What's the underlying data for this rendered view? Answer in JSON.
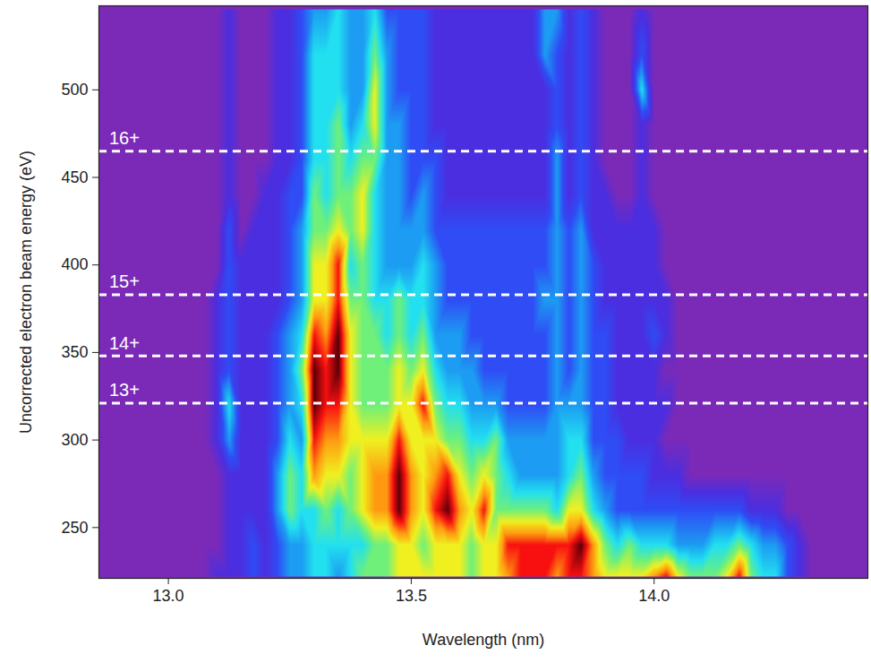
{
  "chart_data": {
    "type": "heatmap",
    "x_label": "Wavelength (nm)",
    "y_label": "Uncorrected electron beam energy (eV)",
    "xlim": [
      12.857,
      14.44
    ],
    "ylim": [
      221,
      548
    ],
    "xticks": [
      {
        "value": 13,
        "label": "13.0"
      },
      {
        "value": 13.5,
        "label": "13.5"
      },
      {
        "value": 14,
        "label": "14.0"
      }
    ],
    "yticks": [
      250,
      300,
      350,
      400,
      450,
      500
    ],
    "annotations": [
      {
        "label": "16+",
        "x": 12.878,
        "y": 465
      },
      {
        "label": "15+",
        "x": 12.878,
        "y": 383
      },
      {
        "label": "14+",
        "x": 12.878,
        "y": 348
      },
      {
        "label": "13+",
        "x": 12.878,
        "y": 321
      }
    ],
    "x": [
      12.875,
      12.9,
      12.925,
      12.95,
      12.975,
      13.0,
      13.025,
      13.05,
      13.075,
      13.1,
      13.125,
      13.15,
      13.175,
      13.2,
      13.225,
      13.25,
      13.275,
      13.3,
      13.325,
      13.35,
      13.375,
      13.4,
      13.425,
      13.45,
      13.475,
      13.5,
      13.525,
      13.55,
      13.575,
      13.6,
      13.625,
      13.65,
      13.675,
      13.7,
      13.725,
      13.75,
      13.775,
      13.8,
      13.825,
      13.85,
      13.875,
      13.9,
      13.925,
      13.95,
      13.975,
      14.0,
      14.025,
      14.05,
      14.075,
      14.1,
      14.125,
      14.15,
      14.175,
      14.2,
      14.225,
      14.25,
      14.275,
      14.3,
      14.325,
      14.35,
      14.375,
      14.4,
      14.425
    ],
    "y": [
      222,
      240,
      260,
      280,
      300,
      320,
      340,
      360,
      380,
      400,
      420,
      440,
      460,
      480,
      500,
      520,
      546
    ],
    "values": [
      [
        0,
        0,
        0,
        0,
        0,
        0,
        0,
        0,
        0,
        1,
        1,
        1,
        2,
        1,
        2,
        3,
        3,
        4,
        4,
        3,
        4,
        5,
        5,
        5,
        6,
        6,
        6,
        6,
        6,
        6,
        5,
        6,
        6,
        7,
        8,
        8,
        8,
        7,
        8,
        8,
        7,
        6,
        6,
        6,
        6,
        7,
        8,
        6,
        5,
        5,
        5,
        6,
        8,
        5,
        4,
        4,
        2,
        1,
        0,
        0,
        0,
        0,
        0
      ],
      [
        0,
        0,
        0,
        0,
        0,
        0,
        0,
        0,
        0,
        0,
        1,
        1,
        2,
        1,
        2,
        3,
        3,
        4,
        4,
        4,
        4,
        4,
        5,
        5,
        6,
        6,
        5,
        6,
        6,
        6,
        5,
        6,
        6,
        8,
        8,
        8,
        8,
        8,
        8,
        9,
        7,
        5,
        4,
        5,
        4,
        4,
        4,
        3,
        3,
        3,
        4,
        4,
        5,
        4,
        3,
        3,
        2,
        1,
        0,
        0,
        0,
        0,
        0
      ],
      [
        0,
        0,
        0,
        0,
        0,
        0,
        0,
        0,
        0,
        0,
        1,
        1,
        1,
        1,
        3,
        5,
        4,
        4,
        5,
        4,
        5,
        6,
        7,
        7,
        9,
        7,
        6,
        8,
        9,
        7,
        6,
        8,
        5,
        5,
        5,
        5,
        5,
        4,
        6,
        6,
        4,
        3,
        2,
        2,
        2,
        2,
        2,
        2,
        2,
        2,
        2,
        2,
        2,
        1,
        1,
        1,
        0,
        0,
        0,
        0,
        0,
        0,
        0
      ],
      [
        0,
        0,
        0,
        0,
        0,
        0,
        0,
        0,
        0,
        0,
        1,
        1,
        1,
        1,
        3,
        5,
        4,
        7,
        6,
        6,
        5,
        6,
        7,
        7,
        9,
        7,
        6,
        7,
        8,
        6,
        5,
        6,
        5,
        4,
        3,
        3,
        3,
        3,
        4,
        5,
        3,
        2,
        2,
        2,
        2,
        1,
        1,
        1,
        0,
        0,
        0,
        0,
        0,
        0,
        0,
        0,
        0,
        0,
        0,
        0,
        0,
        0,
        0
      ],
      [
        0,
        0,
        0,
        0,
        0,
        0,
        0,
        0,
        0,
        1,
        3,
        1,
        1,
        1,
        2,
        4,
        3,
        8,
        7,
        7,
        6,
        6,
        6,
        6,
        8,
        6,
        6,
        6,
        5,
        5,
        4,
        4,
        5,
        3,
        3,
        3,
        3,
        3,
        4,
        4,
        2,
        2,
        2,
        1,
        1,
        1,
        0,
        0,
        0,
        0,
        0,
        0,
        0,
        0,
        0,
        0,
        0,
        0,
        0,
        0,
        0,
        0,
        0
      ],
      [
        0,
        0,
        0,
        0,
        0,
        0,
        0,
        0,
        0,
        1,
        4,
        1,
        1,
        1,
        2,
        3,
        4,
        9,
        8,
        8,
        6,
        5,
        5,
        5,
        6,
        6,
        8,
        5,
        4,
        4,
        3,
        3,
        3,
        2,
        2,
        2,
        2,
        3,
        3,
        3,
        2,
        2,
        1,
        1,
        1,
        1,
        1,
        0,
        0,
        0,
        0,
        0,
        0,
        0,
        0,
        0,
        0,
        0,
        0,
        0,
        0,
        0,
        0
      ],
      [
        0,
        0,
        0,
        0,
        0,
        0,
        0,
        0,
        0,
        1,
        2,
        1,
        1,
        1,
        2,
        3,
        5,
        9,
        8,
        9,
        6,
        5,
        5,
        5,
        6,
        5,
        6,
        4,
        3,
        3,
        3,
        2,
        2,
        2,
        2,
        2,
        2,
        3,
        2,
        3,
        2,
        2,
        1,
        1,
        1,
        1,
        0,
        0,
        0,
        0,
        0,
        0,
        0,
        0,
        0,
        0,
        0,
        0,
        0,
        0,
        0,
        0,
        0
      ],
      [
        0,
        0,
        0,
        0,
        0,
        0,
        0,
        0,
        0,
        1,
        2,
        1,
        1,
        1,
        2,
        3,
        4,
        8,
        7,
        9,
        6,
        5,
        5,
        4,
        5,
        4,
        5,
        3,
        3,
        3,
        2,
        2,
        2,
        2,
        2,
        2,
        2,
        3,
        2,
        3,
        2,
        2,
        1,
        1,
        1,
        2,
        1,
        0,
        0,
        0,
        0,
        0,
        0,
        0,
        0,
        0,
        0,
        0,
        0,
        0,
        0,
        0,
        0
      ],
      [
        0,
        0,
        0,
        0,
        0,
        0,
        0,
        0,
        0,
        1,
        2,
        1,
        1,
        1,
        1,
        2,
        3,
        6,
        6,
        8,
        5,
        5,
        4,
        4,
        5,
        4,
        4,
        3,
        2,
        2,
        2,
        2,
        2,
        2,
        2,
        2,
        3,
        3,
        2,
        3,
        2,
        1,
        1,
        1,
        1,
        1,
        1,
        0,
        0,
        0,
        0,
        0,
        0,
        0,
        0,
        0,
        0,
        0,
        0,
        0,
        0,
        0,
        0
      ],
      [
        0,
        0,
        0,
        0,
        0,
        0,
        0,
        0,
        0,
        0,
        2,
        1,
        1,
        1,
        1,
        2,
        3,
        6,
        6,
        8,
        4,
        5,
        4,
        3,
        3,
        3,
        4,
        3,
        2,
        2,
        2,
        2,
        2,
        2,
        2,
        2,
        2,
        3,
        2,
        3,
        2,
        1,
        1,
        1,
        1,
        1,
        0,
        0,
        0,
        0,
        0,
        0,
        0,
        0,
        0,
        0,
        0,
        0,
        0,
        0,
        0,
        0,
        0
      ],
      [
        0,
        0,
        0,
        0,
        0,
        0,
        0,
        0,
        0,
        0,
        2,
        0,
        1,
        1,
        1,
        2,
        3,
        5,
        5,
        6,
        5,
        6,
        4,
        3,
        3,
        3,
        3,
        2,
        2,
        2,
        2,
        2,
        2,
        2,
        2,
        2,
        2,
        3,
        2,
        3,
        1,
        1,
        1,
        1,
        1,
        1,
        0,
        0,
        0,
        0,
        0,
        0,
        0,
        0,
        0,
        0,
        0,
        0,
        0,
        0,
        0,
        0,
        0
      ],
      [
        0,
        0,
        0,
        0,
        0,
        0,
        0,
        0,
        0,
        0,
        1,
        0,
        0,
        1,
        1,
        2,
        2,
        5,
        4,
        5,
        5,
        6,
        4,
        3,
        3,
        2,
        3,
        2,
        1,
        1,
        1,
        1,
        1,
        1,
        1,
        1,
        1,
        3,
        1,
        2,
        1,
        1,
        0,
        0,
        1,
        0,
        0,
        0,
        0,
        0,
        0,
        0,
        0,
        0,
        0,
        0,
        0,
        0,
        0,
        0,
        0,
        0,
        0
      ],
      [
        0,
        0,
        0,
        0,
        0,
        0,
        0,
        0,
        0,
        0,
        1,
        0,
        0,
        0,
        1,
        1,
        2,
        4,
        4,
        5,
        4,
        5,
        5,
        3,
        3,
        2,
        2,
        2,
        1,
        1,
        1,
        1,
        1,
        1,
        1,
        1,
        1,
        3,
        1,
        2,
        1,
        0,
        0,
        0,
        1,
        0,
        0,
        0,
        0,
        0,
        0,
        0,
        0,
        0,
        0,
        0,
        0,
        0,
        0,
        0,
        0,
        0,
        0
      ],
      [
        0,
        0,
        0,
        0,
        0,
        0,
        0,
        0,
        0,
        0,
        1,
        0,
        0,
        0,
        1,
        1,
        2,
        4,
        4,
        5,
        3,
        4,
        6,
        3,
        3,
        2,
        2,
        1,
        1,
        1,
        1,
        1,
        1,
        1,
        1,
        1,
        1,
        2,
        1,
        2,
        1,
        0,
        0,
        0,
        1,
        0,
        0,
        0,
        0,
        0,
        0,
        0,
        0,
        0,
        0,
        0,
        0,
        0,
        0,
        0,
        0,
        0,
        0
      ],
      [
        0,
        0,
        0,
        0,
        0,
        0,
        0,
        0,
        0,
        0,
        1,
        0,
        0,
        0,
        1,
        1,
        2,
        4,
        4,
        4,
        3,
        3,
        6,
        3,
        2,
        2,
        2,
        1,
        1,
        1,
        1,
        1,
        1,
        1,
        1,
        1,
        1,
        2,
        1,
        2,
        1,
        0,
        0,
        0,
        4,
        0,
        0,
        0,
        0,
        0,
        0,
        0,
        0,
        0,
        0,
        0,
        0,
        0,
        0,
        0,
        0,
        0,
        0
      ],
      [
        0,
        0,
        0,
        0,
        0,
        0,
        0,
        0,
        0,
        0,
        1,
        0,
        0,
        0,
        1,
        1,
        2,
        4,
        4,
        4,
        3,
        3,
        5,
        3,
        2,
        2,
        2,
        1,
        1,
        1,
        1,
        1,
        1,
        1,
        1,
        1,
        3,
        2,
        1,
        2,
        1,
        0,
        0,
        0,
        2,
        0,
        0,
        0,
        0,
        0,
        0,
        0,
        0,
        0,
        0,
        0,
        0,
        0,
        0,
        0,
        0,
        0,
        0
      ],
      [
        0,
        0,
        0,
        0,
        0,
        0,
        0,
        0,
        0,
        0,
        1,
        0,
        0,
        0,
        1,
        1,
        2,
        3,
        3,
        4,
        3,
        3,
        4,
        2,
        2,
        2,
        2,
        1,
        1,
        1,
        1,
        1,
        1,
        1,
        1,
        1,
        3,
        3,
        1,
        2,
        1,
        0,
        0,
        0,
        1,
        0,
        0,
        0,
        0,
        0,
        0,
        0,
        0,
        0,
        0,
        0,
        0,
        0,
        0,
        0,
        0,
        0,
        0
      ]
    ]
  }
}
